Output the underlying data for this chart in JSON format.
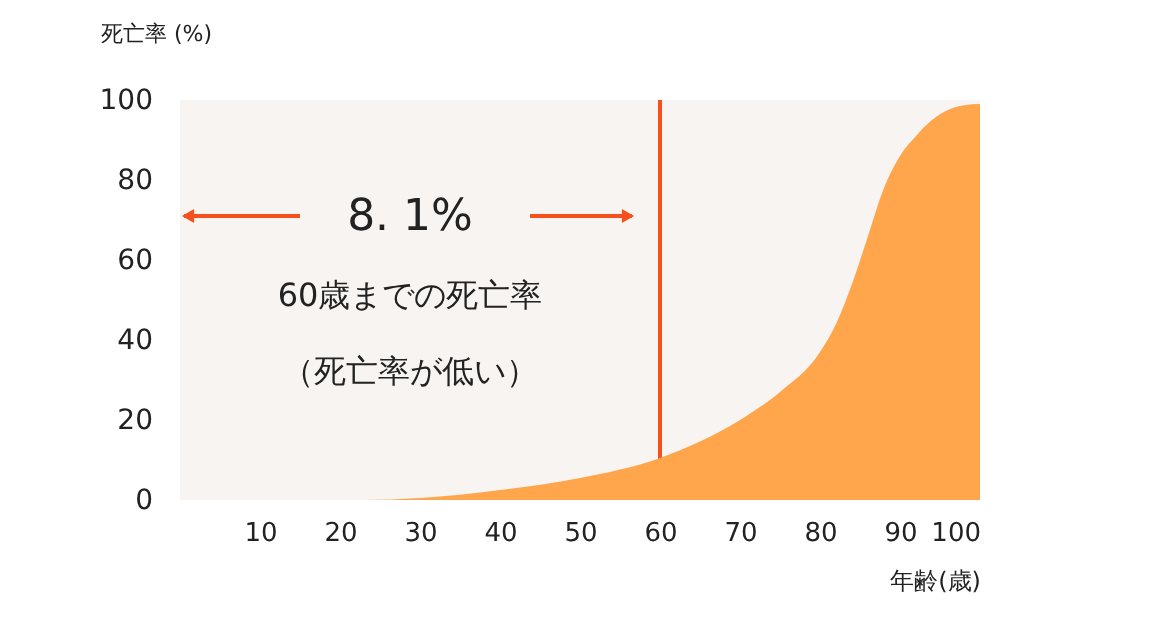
{
  "chart_data": {
    "type": "area",
    "x": [
      0,
      20,
      23,
      30,
      40,
      50,
      60,
      70,
      75,
      80,
      82,
      84,
      86,
      88,
      90,
      92,
      94,
      96,
      98,
      100
    ],
    "values": [
      0,
      0,
      0,
      0.5,
      2.5,
      5.5,
      10.5,
      20,
      27,
      37,
      44,
      54,
      66,
      78,
      86,
      91,
      95,
      97.5,
      98.7,
      99
    ],
    "color": "#ffa54c",
    "xlabel": "年齢(歳)",
    "ylabel": "死亡率 (%)",
    "xlim": [
      0,
      100
    ],
    "xticks": [
      10,
      20,
      30,
      40,
      50,
      60,
      70,
      80,
      90,
      100
    ],
    "ylim": [
      0,
      100
    ],
    "yticks": [
      0,
      20,
      40,
      60,
      80,
      100
    ],
    "ref_lines": [
      {
        "axis": "x",
        "value": 60,
        "color": "#f4511e"
      }
    ],
    "annotations": [
      "8. 1%",
      "60歳までの死亡率",
      "（死亡率が低い）"
    ],
    "grid": false
  }
}
